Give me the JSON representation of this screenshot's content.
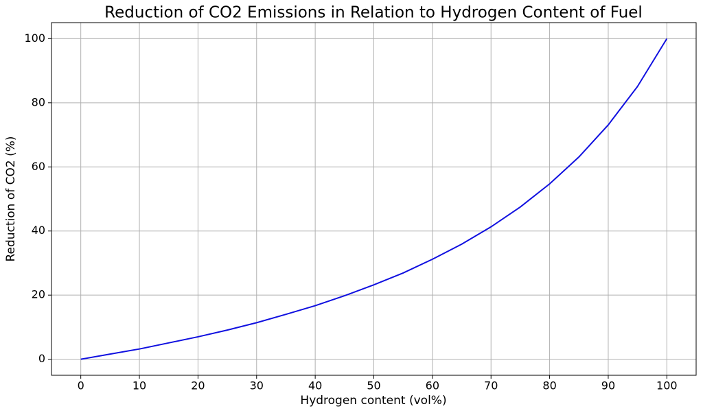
{
  "chart_data": {
    "type": "line",
    "title": "Reduction of CO2 Emissions in Relation to Hydrogen Content of Fuel",
    "x_label": "Hydrogen content (vol%)",
    "y_label": "Reduction of CO2 (%)",
    "x": [
      0,
      5,
      10,
      15,
      20,
      25,
      30,
      35,
      40,
      45,
      50,
      55,
      60,
      65,
      70,
      75,
      80,
      85,
      90,
      95,
      100
    ],
    "series": [
      {
        "color": "#1010e0",
        "values": [
          0,
          1.6,
          3.2,
          5.1,
          7.0,
          9.1,
          11.4,
          14.0,
          16.7,
          19.8,
          23.2,
          26.9,
          31.2,
          35.9,
          41.3,
          47.5,
          54.7,
          63.1,
          73.1,
          85.1,
          100
        ]
      }
    ],
    "xlim": [
      -5,
      105
    ],
    "ylim": [
      -5,
      105
    ],
    "xticks": [
      0,
      10,
      20,
      30,
      40,
      50,
      60,
      70,
      80,
      90,
      100
    ],
    "yticks": [
      0,
      20,
      40,
      60,
      80,
      100
    ],
    "grid": true
  }
}
